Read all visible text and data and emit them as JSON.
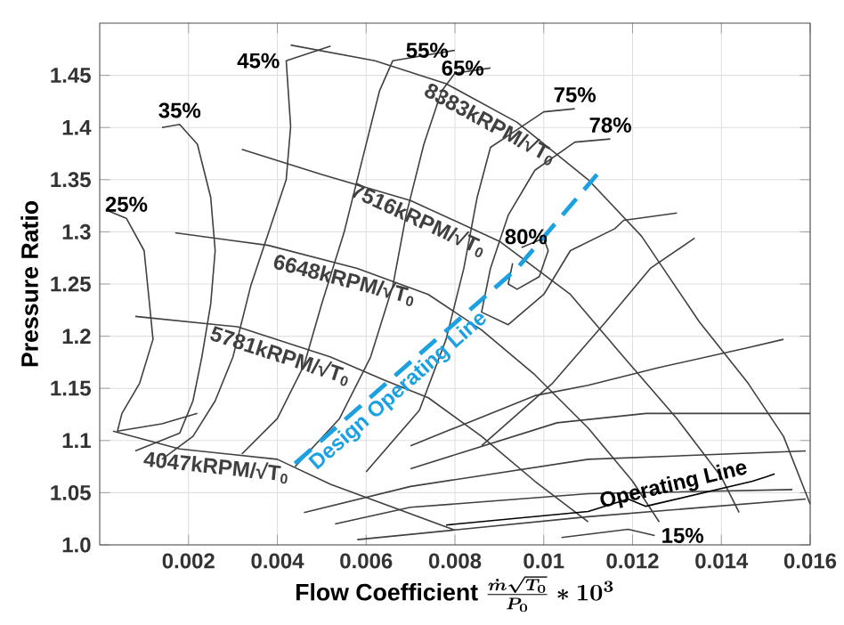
{
  "chart_data": {
    "type": "line",
    "xlabel": "\\text{Flow Coefficient }\\frac{\\dot{m}\\sqrt{T_0}}{P_0}*10^{3}",
    "ylabel": "Pressure Ratio",
    "xlim": [
      0,
      0.016
    ],
    "ylim": [
      1.0,
      1.5
    ],
    "xticks": [
      0.002,
      0.004,
      0.006,
      0.008,
      0.01,
      0.012,
      0.014,
      0.016
    ],
    "yticks": [
      {
        "value": 1.0,
        "label": "1.0"
      },
      1.05,
      1.1,
      1.15,
      1.2,
      1.25,
      1.3,
      1.35,
      1.4,
      1.45
    ],
    "grid": true,
    "series": [
      {
        "name": "8383kRPM/√T$_{0}$",
        "color": "#404040",
        "x": [
          0.0043,
          0.0062,
          0.0078,
          0.0094,
          0.011,
          0.0122,
          0.0135,
          0.0146,
          0.0154,
          0.016
        ],
        "values": [
          1.479,
          1.464,
          1.442,
          1.405,
          1.35,
          1.296,
          1.214,
          1.155,
          1.104,
          1.039
        ]
      },
      {
        "name": "7516kRPM/√T$_{0}$",
        "color": "#404040",
        "x": [
          0.0032,
          0.005,
          0.007,
          0.009,
          0.0106,
          0.0118,
          0.013,
          0.014,
          0.0144
        ],
        "values": [
          1.379,
          1.355,
          1.33,
          1.291,
          1.24,
          1.18,
          1.121,
          1.065,
          1.031
        ]
      },
      {
        "name": "6648kRPM/√T$_{0}$",
        "color": "#404040",
        "x": [
          0.0017,
          0.0038,
          0.0058,
          0.0074,
          0.0086,
          0.0098,
          0.011,
          0.012,
          0.0126
        ],
        "values": [
          1.299,
          1.287,
          1.265,
          1.24,
          1.206,
          1.163,
          1.112,
          1.061,
          1.022
        ]
      },
      {
        "name": "5781kRPM/√T$_{0}$",
        "color": "#404040",
        "x": [
          0.0008,
          0.0031,
          0.0052,
          0.0064,
          0.0074,
          0.0086,
          0.0098,
          0.011
        ],
        "values": [
          1.219,
          1.209,
          1.18,
          1.158,
          1.141,
          1.104,
          1.061,
          1.022
        ]
      },
      {
        "name": "4047kRPM/√T$_{0}$",
        "color": "#404040",
        "x": [
          0.0003,
          0.0018,
          0.004,
          0.0052,
          0.0066,
          0.008
        ],
        "values": [
          1.109,
          1.092,
          1.082,
          1.058,
          1.036,
          1.014
        ]
      },
      {
        "color": "#404040",
        "x": [
          0.0086,
          0.0102,
          0.0114,
          0.0124,
          0.0134
        ],
        "values": [
          1.095,
          1.155,
          1.214,
          1.265,
          1.294
        ]
      },
      {
        "color": "#404040",
        "x": [
          0.007,
          0.0098,
          0.011,
          0.0126,
          0.0146,
          0.0154
        ],
        "values": [
          1.095,
          1.143,
          1.153,
          1.17,
          1.189,
          1.197
        ]
      },
      {
        "color": "#404040",
        "x": [
          0.007,
          0.0103,
          0.0123,
          0.016
        ],
        "values": [
          1.073,
          1.117,
          1.126,
          1.126
        ]
      },
      {
        "color": "#404040",
        "x": [
          0.0046,
          0.007,
          0.011,
          0.0159
        ],
        "values": [
          1.031,
          1.056,
          1.082,
          1.09
        ]
      },
      {
        "color": "#404040",
        "x": [
          0.0053,
          0.007,
          0.011,
          0.0156
        ],
        "values": [
          1.02,
          1.036,
          1.049,
          1.053
        ]
      },
      {
        "color": "#404040",
        "x": [
          0.0058,
          0.011,
          0.0159
        ],
        "values": [
          1.005,
          1.027,
          1.044
        ]
      },
      {
        "color": "#404040",
        "x": [
          0.0002,
          0.0006,
          0.001,
          0.0011,
          0.0012,
          0.0009,
          0.0005,
          0.0004,
          0.0014,
          0.0022
        ],
        "values": [
          1.32,
          1.313,
          1.282,
          1.24,
          1.197,
          1.155,
          1.126,
          1.109,
          1.116,
          1.126
        ]
      },
      {
        "color": "#404040",
        "x": [
          0.0014,
          0.0018,
          0.0022,
          0.0025,
          0.0026,
          0.0025,
          0.0023,
          0.0021,
          0.0018,
          0.0008
        ],
        "values": [
          1.4,
          1.403,
          1.384,
          1.333,
          1.282,
          1.231,
          1.18,
          1.138,
          1.107,
          1.09
        ]
      },
      {
        "color": "#404040",
        "x": [
          0.0052,
          0.0042,
          0.0043,
          0.0042,
          0.0038,
          0.0034,
          0.003,
          0.0026,
          0.0021,
          0.0014
        ],
        "values": [
          1.478,
          1.464,
          1.401,
          1.35,
          1.299,
          1.248,
          1.18,
          1.138,
          1.104,
          1.082
        ]
      },
      {
        "color": "#404040",
        "x": [
          0.008,
          0.0066,
          0.0063,
          0.0059,
          0.0055,
          0.005,
          0.0046,
          0.004,
          0.0032
        ],
        "values": [
          1.474,
          1.464,
          1.435,
          1.367,
          1.299,
          1.231,
          1.172,
          1.121,
          1.087
        ]
      },
      {
        "color": "#404040",
        "x": [
          0.0088,
          0.008,
          0.0077,
          0.0073,
          0.0069,
          0.0066,
          0.0061,
          0.0054,
          0.0044
        ],
        "values": [
          1.457,
          1.452,
          1.435,
          1.384,
          1.316,
          1.248,
          1.18,
          1.121,
          1.075
        ]
      },
      {
        "color": "#404040",
        "x": [
          0.0107,
          0.01,
          0.0094,
          0.0088,
          0.0085,
          0.0082,
          0.0078,
          0.0072,
          0.006
        ],
        "values": [
          1.418,
          1.415,
          1.398,
          1.381,
          1.333,
          1.265,
          1.197,
          1.129,
          1.07
        ]
      },
      {
        "color": "#404040",
        "x": [
          0.0115,
          0.0107,
          0.0098,
          0.0092,
          0.0088,
          0.0086,
          0.0092,
          0.01,
          0.0106,
          0.0116,
          0.0118,
          0.013
        ],
        "values": [
          1.389,
          1.386,
          1.359,
          1.316,
          1.265,
          1.223,
          1.211,
          1.24,
          1.282,
          1.303,
          1.311,
          1.318
        ]
      },
      {
        "color": "#404040",
        "x": [
          0.0095,
          0.01,
          0.0101,
          0.0099,
          0.0094,
          0.0092,
          0.0093
        ],
        "values": [
          1.285,
          1.294,
          1.282,
          1.257,
          1.245,
          1.25,
          1.27
        ]
      },
      {
        "color": "#404040",
        "x": [
          0.0125,
          0.0119,
          0.0104
        ],
        "values": [
          1.009,
          1.015,
          1.007
        ]
      },
      {
        "name": "Design Operating Line",
        "color": "#1ba1e2",
        "line_style": "dashed",
        "x": [
          0.0044,
          0.0094,
          0.0112
        ],
        "values": [
          1.078,
          1.265,
          1.355
        ]
      },
      {
        "name": "Operating Line",
        "color": "#000000",
        "x": [
          0.0152,
          0.015,
          0.0147,
          0.0123,
          0.0119,
          0.011,
          0.0078
        ],
        "values": [
          1.068,
          1.065,
          1.061,
          1.037,
          1.044,
          1.032,
          1.019
        ]
      }
    ],
    "annotations": [
      {
        "text": "25%",
        "x": 0.0006,
        "y": 1.313
      },
      {
        "text": "35%",
        "x": 0.0018,
        "y": 1.403
      },
      {
        "text": "45%",
        "x": 0.0042,
        "y": 1.464
      },
      {
        "text": "55%",
        "x": 0.008,
        "y": 1.474
      },
      {
        "text": "65%",
        "x": 0.0088,
        "y": 1.457
      },
      {
        "text": "75%",
        "x": 0.0107,
        "y": 1.418
      },
      {
        "text": "78%",
        "x": 0.0115,
        "y": 1.389
      },
      {
        "text": "80%",
        "x": 0.0096,
        "y": 1.282
      },
      {
        "text": "15%",
        "x": 0.0125,
        "y": 1.009
      }
    ]
  }
}
